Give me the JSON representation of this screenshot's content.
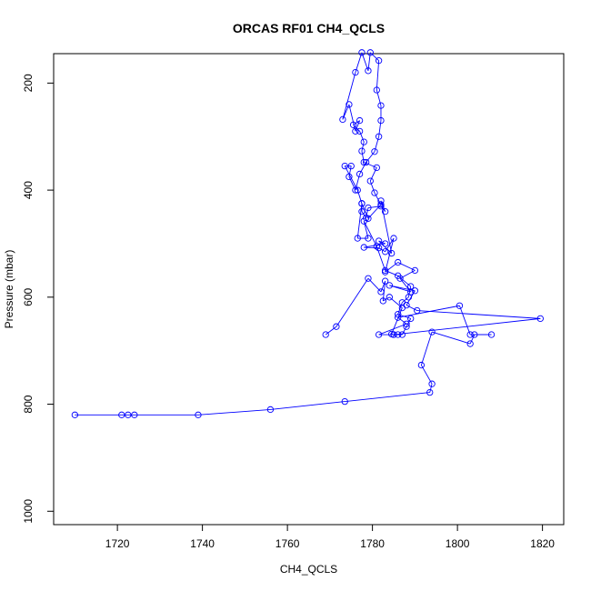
{
  "chart_data": {
    "type": "line",
    "title": "ORCAS RF01 CH4_QCLS",
    "xlabel": "CH4_QCLS",
    "ylabel": "Pressure (mbar)",
    "xlim": [
      1705,
      1825
    ],
    "ylim": [
      1025,
      145
    ],
    "y_reversed": true,
    "x_ticks": [
      1720,
      1740,
      1760,
      1780,
      1800,
      1820
    ],
    "y_ticks": [
      200,
      400,
      600,
      800,
      1000
    ],
    "grid": false,
    "legend": "none",
    "series_color": "#0000ff",
    "marker": "open-circle",
    "points": [
      [
        1710,
        820
      ],
      [
        1721,
        820
      ],
      [
        1722.5,
        820
      ],
      [
        1724,
        820
      ],
      [
        1739,
        820
      ],
      [
        1756,
        810
      ],
      [
        1773.5,
        795
      ],
      [
        1793.5,
        778
      ],
      [
        1794,
        762
      ],
      [
        1791.5,
        727
      ],
      [
        1794,
        665
      ],
      [
        1803,
        687
      ],
      [
        1804,
        670
      ],
      [
        1808,
        670
      ],
      [
        1803,
        670
      ],
      [
        1800.5,
        616
      ],
      [
        1786,
        638
      ],
      [
        1788,
        650
      ],
      [
        1781.5,
        670
      ],
      [
        1785,
        670
      ],
      [
        1819.5,
        640
      ],
      [
        1790.5,
        625
      ],
      [
        1788,
        615
      ],
      [
        1790,
        588
      ],
      [
        1784,
        578
      ],
      [
        1789,
        590
      ],
      [
        1786.5,
        565
      ],
      [
        1790,
        550
      ],
      [
        1786,
        535
      ],
      [
        1783,
        553
      ],
      [
        1785,
        490
      ],
      [
        1783,
        515
      ],
      [
        1781.5,
        508
      ],
      [
        1778,
        507
      ],
      [
        1783,
        500
      ],
      [
        1781.5,
        495
      ],
      [
        1784.5,
        518
      ],
      [
        1782,
        420
      ],
      [
        1783,
        440
      ],
      [
        1782,
        430
      ],
      [
        1779,
        433
      ],
      [
        1778.5,
        452
      ],
      [
        1777.5,
        440
      ],
      [
        1777.5,
        425
      ],
      [
        1779,
        453
      ],
      [
        1782,
        427
      ],
      [
        1780.5,
        405
      ],
      [
        1779.5,
        383
      ],
      [
        1781,
        358
      ],
      [
        1778,
        348
      ],
      [
        1777.5,
        327
      ],
      [
        1778,
        310
      ],
      [
        1777,
        290
      ],
      [
        1775.5,
        278
      ],
      [
        1777,
        270
      ],
      [
        1776,
        290
      ],
      [
        1774.5,
        240
      ],
      [
        1773,
        268
      ],
      [
        1776,
        180
      ],
      [
        1777.5,
        143
      ],
      [
        1779,
        177
      ],
      [
        1779.5,
        143
      ],
      [
        1781.5,
        158
      ],
      [
        1781,
        213
      ],
      [
        1782,
        242
      ],
      [
        1782,
        270
      ],
      [
        1781.5,
        300
      ],
      [
        1780.5,
        328
      ],
      [
        1778.5,
        348
      ],
      [
        1777,
        370
      ],
      [
        1776,
        400
      ],
      [
        1774.5,
        375
      ],
      [
        1775,
        355
      ],
      [
        1773.5,
        355
      ],
      [
        1776.5,
        400
      ],
      [
        1777.5,
        425
      ],
      [
        1776.5,
        490
      ],
      [
        1779,
        490
      ],
      [
        1778,
        458
      ],
      [
        1781,
        505
      ],
      [
        1783,
        550
      ],
      [
        1786,
        560
      ],
      [
        1789,
        580
      ],
      [
        1788.5,
        600
      ],
      [
        1787,
        610
      ],
      [
        1786,
        632
      ],
      [
        1789,
        640
      ],
      [
        1788,
        655
      ],
      [
        1787,
        670
      ],
      [
        1786,
        670
      ],
      [
        1785,
        670
      ],
      [
        1784.5,
        669
      ],
      [
        1787,
        620
      ],
      [
        1784,
        600
      ],
      [
        1782.5,
        607
      ],
      [
        1783,
        570
      ],
      [
        1782,
        590
      ],
      [
        1779,
        565
      ],
      [
        1771.5,
        655
      ],
      [
        1769,
        670
      ]
    ]
  }
}
